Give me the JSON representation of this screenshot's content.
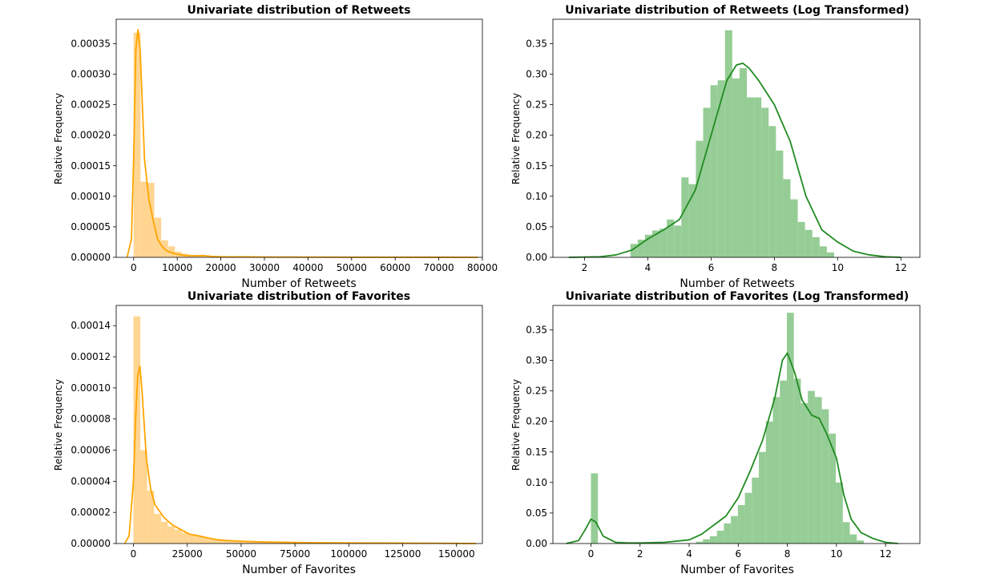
{
  "colors": {
    "orange": "#ffa500",
    "green": "#228b22"
  },
  "chart_data": [
    {
      "type": "histogram",
      "title": "Univariate distribution of Retweets",
      "xlabel": "Number of Retweets",
      "ylabel": "Relative Frequency",
      "xlim": [
        -4000,
        80000
      ],
      "ylim": [
        0,
        0.00039
      ],
      "color": "orange",
      "xticks": [
        0,
        10000,
        20000,
        30000,
        40000,
        50000,
        60000,
        70000,
        80000
      ],
      "xtick_labels": [
        "0",
        "10000",
        "20000",
        "30000",
        "40000",
        "50000",
        "60000",
        "70000",
        "80000"
      ],
      "yticks": [
        0,
        5e-05,
        0.0001,
        0.00015,
        0.0002,
        0.00025,
        0.0003,
        0.00035
      ],
      "ytick_labels": [
        "0.00000",
        "0.00005",
        "0.00010",
        "0.00015",
        "0.00020",
        "0.00025",
        "0.00030",
        "0.00035"
      ],
      "hist": {
        "bin_start": 0,
        "bin_width": 1580,
        "values": [
          0.000368,
          0.000124,
          0.000122,
          6.5e-05,
          2.8e-05,
          1.8e-05,
          9e-06,
          6e-06,
          4e-06,
          4e-06,
          3e-06,
          2e-06,
          2e-06,
          1e-06,
          1e-06,
          1e-06,
          1e-06,
          1e-06,
          1e-06,
          1e-06,
          8e-07,
          6e-07,
          5e-07,
          5e-07,
          4e-07,
          4e-07,
          3e-07,
          3e-07,
          3e-07,
          2e-07,
          2e-07,
          2e-07,
          2e-07,
          2e-07,
          1e-07,
          1e-07,
          1e-07,
          1e-07,
          1e-07,
          1e-07,
          1e-07,
          1e-07,
          1e-07,
          1e-07,
          1e-07,
          1e-07,
          1e-07,
          1e-07,
          1e-07,
          1e-07
        ]
      },
      "kde": {
        "x": [
          -1500,
          -500,
          0,
          500,
          1000,
          1500,
          2500,
          3500,
          4500,
          5500,
          6500,
          7500,
          8500,
          10000,
          12000,
          14000,
          16000,
          18000,
          20000,
          25000,
          30000,
          40000,
          50000,
          60000,
          70000,
          79000
        ],
        "y": [
          0,
          3e-05,
          0.00016,
          0.00034,
          0.000373,
          0.00034,
          0.00016,
          9.5e-05,
          6e-05,
          3e-05,
          1.8e-05,
          1.1e-05,
          8e-06,
          5e-06,
          3e-06,
          2.5e-06,
          3e-06,
          1.5e-06,
          1e-06,
          8e-07,
          5e-07,
          3e-07,
          2e-07,
          2e-07,
          1e-07,
          0
        ]
      }
    },
    {
      "type": "histogram",
      "title": "Univariate distribution of Retweets (Log Transformed)",
      "xlabel": "Number of Retweets",
      "ylabel": "Relative Frequency",
      "xlim": [
        1.0,
        12.6
      ],
      "ylim": [
        0,
        0.39
      ],
      "color": "green",
      "xticks": [
        2,
        4,
        6,
        8,
        10,
        12
      ],
      "xtick_labels": [
        "2",
        "4",
        "6",
        "8",
        "10",
        "12"
      ],
      "yticks": [
        0,
        0.05,
        0.1,
        0.15,
        0.2,
        0.25,
        0.3,
        0.35
      ],
      "ytick_labels": [
        "0.00",
        "0.05",
        "0.10",
        "0.15",
        "0.20",
        "0.25",
        "0.30",
        "0.35"
      ],
      "hist": {
        "bin_start": 3.45,
        "bin_width": 0.23,
        "values": [
          0.022,
          0.029,
          0.037,
          0.044,
          0.047,
          0.062,
          0.052,
          0.131,
          0.12,
          0.191,
          0.245,
          0.282,
          0.29,
          0.372,
          0.293,
          0.31,
          0.262,
          0.262,
          0.245,
          0.215,
          0.175,
          0.128,
          0.095,
          0.058,
          0.045,
          0.033,
          0.018,
          0.008
        ]
      },
      "kde": {
        "x": [
          1.5,
          2.5,
          3.0,
          3.5,
          4.0,
          4.5,
          5.0,
          5.5,
          6.0,
          6.5,
          6.8,
          7.0,
          7.2,
          7.5,
          8.0,
          8.5,
          9.0,
          9.5,
          10.0,
          10.5,
          11.0,
          11.5,
          12.0
        ],
        "y": [
          0,
          0.001,
          0.004,
          0.012,
          0.03,
          0.045,
          0.062,
          0.11,
          0.2,
          0.29,
          0.315,
          0.318,
          0.31,
          0.29,
          0.25,
          0.19,
          0.1,
          0.045,
          0.025,
          0.01,
          0.004,
          0.001,
          0
        ]
      }
    },
    {
      "type": "histogram",
      "title": "Univariate distribution of Favorites",
      "xlabel": "Number of Favorites",
      "ylabel": "Relative Frequency",
      "xlim": [
        -8000,
        162000
      ],
      "ylim": [
        0,
        0.000153
      ],
      "color": "orange",
      "xticks": [
        0,
        25000,
        50000,
        75000,
        100000,
        125000,
        150000
      ],
      "xtick_labels": [
        "0",
        "25000",
        "50000",
        "75000",
        "100000",
        "125000",
        "150000"
      ],
      "yticks": [
        0,
        2e-05,
        4e-05,
        6e-05,
        8e-05,
        0.0001,
        0.00012,
        0.00014
      ],
      "ytick_labels": [
        "0.00000",
        "0.00002",
        "0.00004",
        "0.00006",
        "0.00008",
        "0.00010",
        "0.00012",
        "0.00014"
      ],
      "hist": {
        "bin_start": 0,
        "bin_width": 3200,
        "values": [
          0.000146,
          6e-05,
          3.4e-05,
          1.9e-05,
          1.4e-05,
          1.1e-05,
          9e-06,
          7e-06,
          6e-06,
          5e-06,
          4e-06,
          3e-06,
          3e-06,
          2e-06,
          2e-06,
          1.5e-06,
          1.2e-06,
          1e-06,
          1e-06,
          8e-07,
          6e-07,
          5e-07,
          5e-07,
          4e-07,
          4e-07,
          3e-07,
          3e-07,
          3e-07,
          2e-07,
          2e-07,
          2e-07,
          2e-07,
          2e-07,
          2e-07,
          1e-07,
          1e-07,
          1e-07,
          1e-07,
          1e-07,
          1e-07,
          1e-07,
          1e-07,
          1e-07,
          1e-07,
          1e-07,
          1e-07,
          1e-07,
          1e-07,
          1e-07,
          1e-07
        ]
      },
      "kde": {
        "x": [
          -4000,
          -2000,
          0,
          1000,
          2000,
          3000,
          4000,
          6000,
          8000,
          10000,
          14000,
          18000,
          22000,
          26000,
          30000,
          35000,
          40000,
          50000,
          60000,
          80000,
          100000,
          120000,
          140000,
          159000
        ],
        "y": [
          0,
          5e-06,
          4e-05,
          8e-05,
          0.000108,
          0.000114,
          9.8e-05,
          5.5e-05,
          3.5e-05,
          2.5e-05,
          1.7e-05,
          1.2e-05,
          9e-06,
          6e-06,
          5e-06,
          3.5e-06,
          2.2e-06,
          1.5e-06,
          1e-06,
          6e-07,
          4e-07,
          3e-07,
          2e-07,
          0
        ]
      }
    },
    {
      "type": "histogram",
      "title": "Univariate distribution of Favorites (Log Transformed)",
      "xlabel": "Number of Favorites",
      "ylabel": "Relative Frequency",
      "xlim": [
        -1.55,
        13.4
      ],
      "ylim": [
        0,
        0.39
      ],
      "color": "green",
      "xticks": [
        0,
        2,
        4,
        6,
        8,
        10,
        12
      ],
      "xtick_labels": [
        "0",
        "2",
        "4",
        "6",
        "8",
        "10",
        "12"
      ],
      "yticks": [
        0,
        0.05,
        0.1,
        0.15,
        0.2,
        0.25,
        0.3,
        0.35
      ],
      "ytick_labels": [
        "0.00",
        "0.05",
        "0.10",
        "0.15",
        "0.20",
        "0.25",
        "0.30",
        "0.35"
      ],
      "hist": {
        "bin_start": 0,
        "bin_width": 0.285,
        "values": [
          0.115,
          0,
          0,
          0,
          0,
          0,
          0,
          0,
          0,
          0,
          0,
          0,
          0,
          0,
          0,
          0.003,
          0.007,
          0.012,
          0.021,
          0.033,
          0.045,
          0.063,
          0.083,
          0.108,
          0.15,
          0.2,
          0.24,
          0.267,
          0.378,
          0.27,
          0.23,
          0.25,
          0.24,
          0.22,
          0.18,
          0.1,
          0.035,
          0.015,
          0.005
        ]
      },
      "kde": {
        "x": [
          -1.0,
          -0.5,
          -0.2,
          0,
          0.2,
          0.5,
          1.0,
          1.5,
          2.0,
          3.0,
          4.0,
          4.5,
          5.0,
          5.5,
          6.0,
          6.5,
          7.0,
          7.5,
          7.8,
          8.0,
          8.3,
          8.6,
          9.0,
          9.3,
          9.6,
          10.0,
          10.3,
          10.6,
          11.0,
          11.5,
          12.0,
          12.5
        ],
        "y": [
          0,
          0.005,
          0.025,
          0.04,
          0.035,
          0.012,
          0.002,
          0.001,
          0.001,
          0.002,
          0.006,
          0.015,
          0.03,
          0.045,
          0.075,
          0.12,
          0.17,
          0.24,
          0.3,
          0.312,
          0.28,
          0.235,
          0.21,
          0.205,
          0.18,
          0.14,
          0.08,
          0.04,
          0.018,
          0.008,
          0.002,
          0
        ]
      }
    }
  ]
}
